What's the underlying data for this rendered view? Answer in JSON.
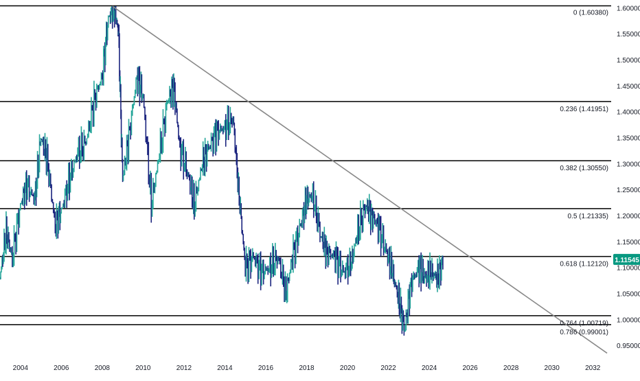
{
  "chart_data": {
    "type": "line",
    "chart_style": "bars",
    "instrument_hint": "price",
    "ylim": [
      0.925,
      1.615
    ],
    "xlim": [
      2003.0,
      2032.9
    ],
    "y_ticks": [
      "1.60000",
      "1.55000",
      "1.50000",
      "1.45000",
      "1.40000",
      "1.35000",
      "1.30000",
      "1.25000",
      "1.20000",
      "1.15000",
      "1.10000",
      "1.05000",
      "1.00000",
      "0.95000"
    ],
    "x_ticks": [
      "2004",
      "2006",
      "2008",
      "2010",
      "2012",
      "2014",
      "2016",
      "2018",
      "2020",
      "2022",
      "2024",
      "2026",
      "2028",
      "2030",
      "2032"
    ],
    "fib_levels": [
      {
        "ratio": "0",
        "value": 1.6038,
        "label": "0 (1.60380)"
      },
      {
        "ratio": "0.236",
        "value": 1.41951,
        "label": "0.236 (1.41951)"
      },
      {
        "ratio": "0.382",
        "value": 1.3055,
        "label": "0.382 (1.30550)"
      },
      {
        "ratio": "0.5",
        "value": 1.21335,
        "label": "0.5 (1.21335)"
      },
      {
        "ratio": "0.618",
        "value": 1.1212,
        "label": "0.618 (1.12120)"
      },
      {
        "ratio": "0.764",
        "value": 1.00719,
        "label": "0.764 (1.00719)"
      },
      {
        "ratio": "0.786",
        "value": 0.99001,
        "label": "0.786 (0.99001)"
      }
    ],
    "trendline": {
      "from": [
        2008.5,
        1.603
      ],
      "to": [
        2032.7,
        0.935
      ],
      "color": "#888888"
    },
    "last_price": {
      "value": 1.11545,
      "label": "1.11545",
      "color": "#089981"
    },
    "up_color": "#26a69a",
    "down_color": "#1a237e",
    "series": [
      {
        "x": [
          2003.0,
          2003.3,
          2003.6,
          2004.0,
          2004.3,
          2004.7,
          2005.0,
          2005.3,
          2005.7,
          2006.0,
          2006.4,
          2006.8,
          2007.2,
          2007.6,
          2008.0,
          2008.3,
          2008.6,
          2008.8,
          2009.0,
          2009.3,
          2009.7,
          2010.0,
          2010.4,
          2010.8,
          2011.2,
          2011.5,
          2011.8,
          2012.2,
          2012.5,
          2012.9,
          2013.2,
          2013.6,
          2014.0,
          2014.4,
          2014.7,
          2015.0,
          2015.4,
          2015.8,
          2016.2,
          2016.6,
          2017.0,
          2017.3,
          2017.7,
          2018.0,
          2018.3,
          2018.7,
          2019.0,
          2019.4,
          2019.8,
          2020.2,
          2020.5,
          2020.9,
          2021.2,
          2021.5,
          2021.9,
          2022.2,
          2022.5,
          2022.8,
          2023.1,
          2023.5,
          2023.8,
          2024.1,
          2024.4,
          2024.7
        ],
        "y": [
          1.08,
          1.17,
          1.12,
          1.22,
          1.26,
          1.23,
          1.35,
          1.31,
          1.18,
          1.21,
          1.27,
          1.32,
          1.34,
          1.42,
          1.47,
          1.58,
          1.6,
          1.55,
          1.27,
          1.35,
          1.47,
          1.43,
          1.22,
          1.32,
          1.42,
          1.45,
          1.33,
          1.28,
          1.22,
          1.3,
          1.33,
          1.36,
          1.37,
          1.39,
          1.24,
          1.1,
          1.12,
          1.09,
          1.1,
          1.12,
          1.05,
          1.12,
          1.18,
          1.23,
          1.24,
          1.16,
          1.13,
          1.12,
          1.09,
          1.11,
          1.17,
          1.22,
          1.2,
          1.18,
          1.13,
          1.09,
          1.04,
          0.98,
          1.07,
          1.1,
          1.08,
          1.09,
          1.08,
          1.11545
        ],
        "high": [
          1.2,
          1.19,
          1.17,
          1.26,
          1.27,
          1.28,
          1.37,
          1.34,
          1.27,
          1.24,
          1.31,
          1.34,
          1.37,
          1.48,
          1.6,
          1.603,
          1.603,
          1.58,
          1.43,
          1.49,
          1.51,
          1.46,
          1.32,
          1.43,
          1.49,
          1.46,
          1.4,
          1.34,
          1.32,
          1.34,
          1.38,
          1.39,
          1.4,
          1.39,
          1.25,
          1.2,
          1.15,
          1.14,
          1.14,
          1.14,
          1.08,
          1.21,
          1.25,
          1.255,
          1.25,
          1.19,
          1.16,
          1.15,
          1.12,
          1.12,
          1.2,
          1.23,
          1.235,
          1.22,
          1.16,
          1.12,
          1.06,
          1.01,
          1.1,
          1.12,
          1.11,
          1.11,
          1.1,
          1.12
        ],
        "low": [
          1.05,
          1.1,
          1.07,
          1.18,
          1.2,
          1.2,
          1.28,
          1.22,
          1.17,
          1.18,
          1.2,
          1.26,
          1.3,
          1.34,
          1.39,
          1.46,
          1.4,
          1.23,
          1.25,
          1.31,
          1.42,
          1.38,
          1.19,
          1.23,
          1.34,
          1.38,
          1.28,
          1.21,
          1.2,
          1.27,
          1.28,
          1.32,
          1.34,
          1.34,
          1.1,
          1.05,
          1.07,
          1.04,
          1.06,
          1.08,
          1.04,
          1.05,
          1.11,
          1.19,
          1.15,
          1.12,
          1.1,
          1.09,
          1.07,
          1.08,
          1.11,
          1.17,
          1.16,
          1.12,
          1.09,
          1.01,
          0.96,
          0.955,
          0.97,
          1.06,
          1.05,
          1.06,
          1.07,
          1.09
        ]
      }
    ]
  }
}
